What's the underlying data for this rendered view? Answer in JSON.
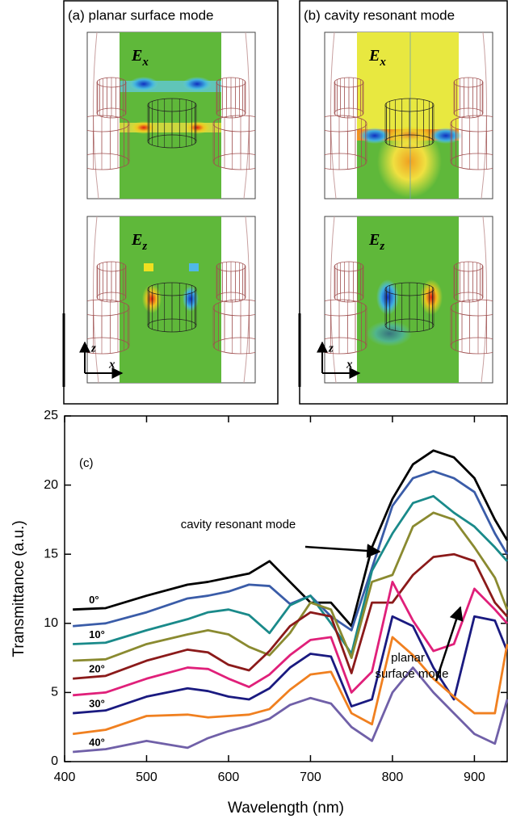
{
  "panels": [
    {
      "title": "(a) planar surface mode",
      "fields": [
        {
          "symbol": "E",
          "sub": "x"
        },
        {
          "symbol": "E",
          "sub": "z"
        }
      ],
      "axes": [
        "z",
        "x"
      ]
    },
    {
      "title": "(b) cavity resonant mode",
      "fields": [
        {
          "symbol": "E",
          "sub": "x"
        },
        {
          "symbol": "E",
          "sub": "z"
        }
      ],
      "axes": [
        "z",
        "x"
      ]
    }
  ],
  "chart_data": {
    "type": "line",
    "x_label": "Wavelength (nm)",
    "y_label": "Transmittance (a.u.)",
    "annotations": [
      "(c)",
      "cavity resonant mode",
      "planar",
      "surface mode"
    ],
    "x": [
      410,
      450,
      500,
      550,
      575,
      600,
      625,
      650,
      675,
      700,
      725,
      750,
      775,
      800,
      825,
      850,
      875,
      900,
      925,
      940
    ],
    "series": [
      {
        "name": "0°",
        "color": "#000000",
        "values": [
          11.0,
          11.1,
          12.0,
          12.8,
          13.0,
          13.3,
          13.6,
          14.5,
          13.0,
          11.5,
          11.5,
          9.8,
          15.5,
          19,
          21.5,
          22.5,
          22,
          20.5,
          17.5,
          16
        ]
      },
      {
        "color": "#3a5ca8",
        "values": [
          9.8,
          10.0,
          10.8,
          11.8,
          12.0,
          12.3,
          12.8,
          12.7,
          11.4,
          12.0,
          10.5,
          9.5,
          14.0,
          18.5,
          20.5,
          21.0,
          20.5,
          19.5,
          16.5,
          15
        ]
      },
      {
        "name": "10°",
        "color": "#1a8a8a",
        "values": [
          8.5,
          8.6,
          9.5,
          10.3,
          10.8,
          11.0,
          10.6,
          9.3,
          11.3,
          12.0,
          10.0,
          7.8,
          13.8,
          16.5,
          18.7,
          19.2,
          18.0,
          17.0,
          15.5,
          14.5
        ]
      },
      {
        "color": "#8a8a30",
        "values": [
          7.3,
          7.4,
          8.5,
          9.2,
          9.5,
          9.2,
          8.3,
          7.7,
          9.3,
          11.5,
          11.0,
          7.5,
          13.0,
          13.5,
          17.0,
          18.0,
          17.5,
          15.5,
          13.3,
          11
        ]
      },
      {
        "name": "20°",
        "color": "#8b1a1a",
        "values": [
          6.0,
          6.2,
          7.3,
          8.1,
          7.9,
          7.0,
          6.6,
          8.0,
          9.8,
          10.8,
          10.5,
          6.4,
          11.5,
          11.5,
          13.5,
          14.8,
          15.0,
          14.5,
          11.5,
          10.5
        ]
      },
      {
        "color": "#e0207a",
        "values": [
          4.8,
          5.0,
          6.0,
          6.8,
          6.7,
          6.0,
          5.4,
          6.3,
          7.7,
          8.8,
          9.0,
          5.0,
          6.5,
          13.0,
          10.2,
          8.0,
          8.5,
          12.5,
          11.0,
          10
        ]
      },
      {
        "name": "30°",
        "color": "#1a1a80",
        "values": [
          3.5,
          3.7,
          4.7,
          5.3,
          5.1,
          4.7,
          4.5,
          5.3,
          6.8,
          7.8,
          7.6,
          4.0,
          4.5,
          10.5,
          9.8,
          6.8,
          4.5,
          10.5,
          10.2,
          8
        ]
      },
      {
        "color": "#f08020",
        "values": [
          2.0,
          2.3,
          3.3,
          3.4,
          3.2,
          3.3,
          3.4,
          3.8,
          5.2,
          6.3,
          6.5,
          3.5,
          2.7,
          9.0,
          7.7,
          6.0,
          4.7,
          3.5,
          3.5,
          8.5
        ]
      },
      {
        "name": "40°",
        "color": "#7060a8",
        "values": [
          0.7,
          0.9,
          1.5,
          1.0,
          1.7,
          2.2,
          2.6,
          3.1,
          4.1,
          4.6,
          4.2,
          2.5,
          1.5,
          5.0,
          6.8,
          5.0,
          3.5,
          2.0,
          1.3,
          4.5
        ]
      }
    ],
    "xlim": [
      400,
      940
    ],
    "xticks": [
      400,
      500,
      600,
      700,
      800,
      900
    ],
    "ylim": [
      0,
      25
    ],
    "yticks": [
      0,
      5,
      10,
      15,
      20,
      25
    ]
  }
}
